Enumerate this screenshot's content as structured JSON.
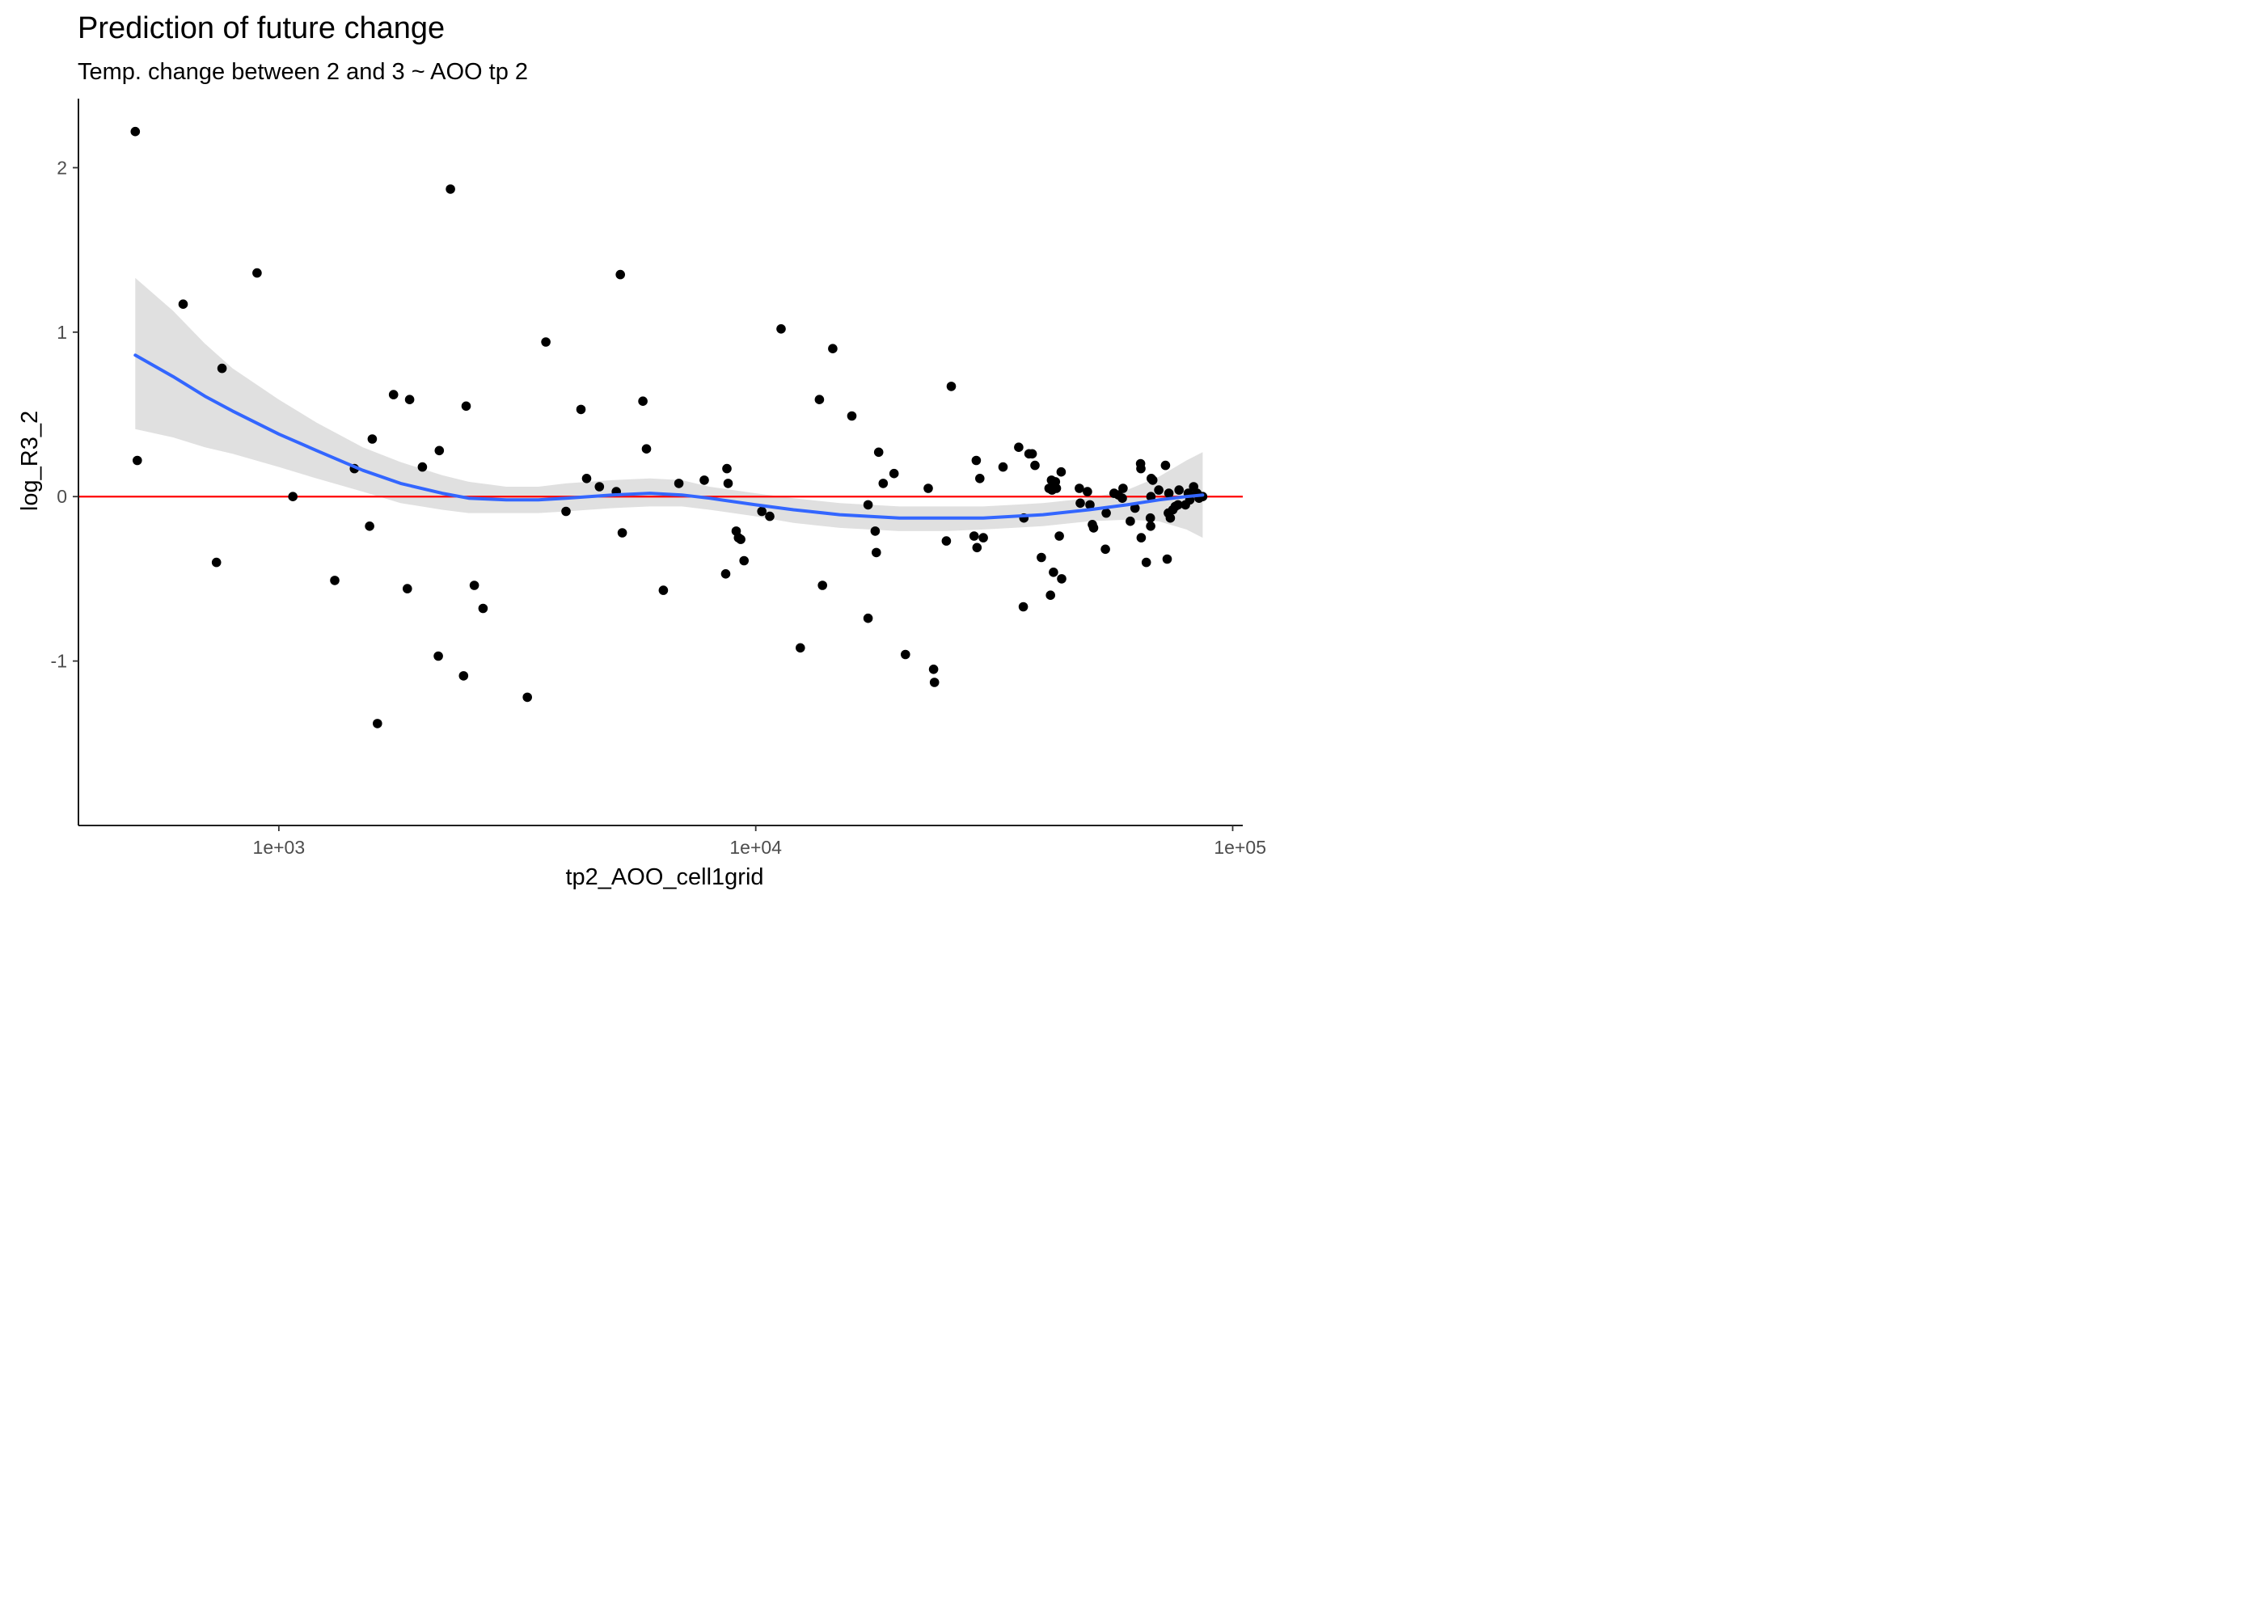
{
  "chart_data": {
    "type": "scatter",
    "title": "Prediction of future change",
    "subtitle": "Temp. change between 2 and 3 ~ AOO tp 2",
    "xlabel": "tp2_AOO_cell1grid",
    "ylabel": "log_R3_2",
    "x_scale": "log10",
    "xlim": [
      380,
      105000
    ],
    "ylim": [
      -2.0,
      2.42
    ],
    "x_ticks": [
      1000,
      10000,
      100000
    ],
    "x_tick_labels": [
      "1e+03",
      "1e+04",
      "1e+05"
    ],
    "y_ticks": [
      -1,
      0,
      1,
      2
    ],
    "y_tick_labels": [
      "-1",
      "0",
      "1",
      "2"
    ],
    "grid": false,
    "colors": {
      "points": "#000000",
      "smooth_line": "#3366FF",
      "confidence_band": "#CCCCCC",
      "reference_line": "#FF0000",
      "axis": "#000000",
      "tick_text": "#4D4D4D"
    },
    "reference_line_y": 0,
    "points": [
      {
        "x": 500,
        "y": 2.22
      },
      {
        "x": 505,
        "y": 0.22
      },
      {
        "x": 630,
        "y": 1.17
      },
      {
        "x": 740,
        "y": -0.4
      },
      {
        "x": 760,
        "y": 0.78
      },
      {
        "x": 900,
        "y": 1.36
      },
      {
        "x": 1070,
        "y": 0.0
      },
      {
        "x": 1310,
        "y": -0.51
      },
      {
        "x": 1440,
        "y": 0.17
      },
      {
        "x": 1550,
        "y": -0.18
      },
      {
        "x": 1570,
        "y": 0.35
      },
      {
        "x": 1610,
        "y": -1.38
      },
      {
        "x": 1740,
        "y": 0.62
      },
      {
        "x": 1860,
        "y": -0.56
      },
      {
        "x": 1880,
        "y": 0.59
      },
      {
        "x": 2000,
        "y": 0.18
      },
      {
        "x": 2160,
        "y": -0.97
      },
      {
        "x": 2170,
        "y": 0.28
      },
      {
        "x": 2290,
        "y": 1.87
      },
      {
        "x": 2440,
        "y": -1.09
      },
      {
        "x": 2470,
        "y": 0.55
      },
      {
        "x": 2570,
        "y": -0.54
      },
      {
        "x": 2680,
        "y": -0.68
      },
      {
        "x": 3320,
        "y": -1.22
      },
      {
        "x": 3630,
        "y": 0.94
      },
      {
        "x": 4000,
        "y": -0.09
      },
      {
        "x": 4300,
        "y": 0.53
      },
      {
        "x": 4420,
        "y": 0.11
      },
      {
        "x": 4700,
        "y": 0.06
      },
      {
        "x": 5100,
        "y": 0.03
      },
      {
        "x": 5200,
        "y": 1.35
      },
      {
        "x": 5250,
        "y": -0.22
      },
      {
        "x": 5800,
        "y": 0.58
      },
      {
        "x": 5900,
        "y": 0.29
      },
      {
        "x": 6400,
        "y": -0.57
      },
      {
        "x": 6900,
        "y": 0.08
      },
      {
        "x": 7800,
        "y": 0.1
      },
      {
        "x": 8650,
        "y": -0.47
      },
      {
        "x": 8700,
        "y": 0.17
      },
      {
        "x": 8750,
        "y": 0.08
      },
      {
        "x": 9100,
        "y": -0.21
      },
      {
        "x": 9200,
        "y": -0.25
      },
      {
        "x": 9300,
        "y": -0.26
      },
      {
        "x": 9450,
        "y": -0.39
      },
      {
        "x": 10300,
        "y": -0.09
      },
      {
        "x": 10700,
        "y": -0.12
      },
      {
        "x": 11300,
        "y": 1.02
      },
      {
        "x": 12400,
        "y": -0.92
      },
      {
        "x": 13600,
        "y": 0.59
      },
      {
        "x": 13800,
        "y": -0.54
      },
      {
        "x": 14500,
        "y": 0.9
      },
      {
        "x": 15900,
        "y": 0.49
      },
      {
        "x": 17200,
        "y": -0.05
      },
      {
        "x": 17200,
        "y": -0.74
      },
      {
        "x": 17800,
        "y": -0.21
      },
      {
        "x": 17900,
        "y": -0.34
      },
      {
        "x": 18100,
        "y": 0.27
      },
      {
        "x": 18500,
        "y": 0.08
      },
      {
        "x": 19500,
        "y": 0.14
      },
      {
        "x": 20600,
        "y": -0.96
      },
      {
        "x": 23000,
        "y": 0.05
      },
      {
        "x": 23600,
        "y": -1.05
      },
      {
        "x": 23700,
        "y": -1.13
      },
      {
        "x": 25100,
        "y": -0.27
      },
      {
        "x": 25700,
        "y": 0.67
      },
      {
        "x": 28700,
        "y": -0.24
      },
      {
        "x": 29000,
        "y": 0.22
      },
      {
        "x": 29100,
        "y": -0.31
      },
      {
        "x": 29500,
        "y": 0.11
      },
      {
        "x": 30000,
        "y": -0.25
      },
      {
        "x": 33000,
        "y": 0.18
      },
      {
        "x": 35600,
        "y": 0.3
      },
      {
        "x": 36400,
        "y": -0.67
      },
      {
        "x": 36500,
        "y": -0.13
      },
      {
        "x": 37400,
        "y": 0.26
      },
      {
        "x": 38000,
        "y": 0.26
      },
      {
        "x": 38500,
        "y": 0.19
      },
      {
        "x": 39700,
        "y": -0.37
      },
      {
        "x": 41200,
        "y": 0.05
      },
      {
        "x": 41500,
        "y": -0.6
      },
      {
        "x": 41700,
        "y": 0.1
      },
      {
        "x": 41800,
        "y": 0.04
      },
      {
        "x": 42100,
        "y": -0.46
      },
      {
        "x": 42300,
        "y": 0.08
      },
      {
        "x": 42500,
        "y": 0.09
      },
      {
        "x": 42700,
        "y": 0.05
      },
      {
        "x": 43300,
        "y": -0.24
      },
      {
        "x": 43700,
        "y": 0.15
      },
      {
        "x": 43800,
        "y": -0.5
      },
      {
        "x": 47700,
        "y": 0.05
      },
      {
        "x": 47900,
        "y": -0.04
      },
      {
        "x": 49600,
        "y": 0.03
      },
      {
        "x": 50200,
        "y": -0.05
      },
      {
        "x": 50800,
        "y": -0.17
      },
      {
        "x": 51100,
        "y": -0.19
      },
      {
        "x": 54100,
        "y": -0.32
      },
      {
        "x": 54300,
        "y": -0.1
      },
      {
        "x": 56400,
        "y": 0.02
      },
      {
        "x": 57600,
        "y": 0.01
      },
      {
        "x": 58700,
        "y": -0.01
      },
      {
        "x": 58900,
        "y": 0.05
      },
      {
        "x": 61000,
        "y": -0.15
      },
      {
        "x": 62400,
        "y": -0.07
      },
      {
        "x": 64100,
        "y": 0.2
      },
      {
        "x": 64200,
        "y": 0.17
      },
      {
        "x": 64300,
        "y": -0.25
      },
      {
        "x": 65900,
        "y": -0.4
      },
      {
        "x": 67200,
        "y": -0.13
      },
      {
        "x": 67300,
        "y": -0.18
      },
      {
        "x": 67400,
        "y": 0.0
      },
      {
        "x": 67500,
        "y": 0.11
      },
      {
        "x": 68000,
        "y": 0.1
      },
      {
        "x": 70000,
        "y": 0.04
      },
      {
        "x": 72300,
        "y": 0.19
      },
      {
        "x": 72900,
        "y": -0.38
      },
      {
        "x": 73300,
        "y": -0.1
      },
      {
        "x": 73500,
        "y": 0.02
      },
      {
        "x": 74000,
        "y": -0.13
      },
      {
        "x": 74900,
        "y": -0.08
      },
      {
        "x": 75800,
        "y": -0.06
      },
      {
        "x": 76800,
        "y": -0.05
      },
      {
        "x": 77200,
        "y": 0.04
      },
      {
        "x": 79600,
        "y": -0.05
      },
      {
        "x": 80700,
        "y": 0.02
      },
      {
        "x": 81300,
        "y": -0.02
      },
      {
        "x": 82800,
        "y": 0.06
      },
      {
        "x": 84200,
        "y": 0.02
      },
      {
        "x": 85000,
        "y": -0.01
      },
      {
        "x": 86500,
        "y": 0.0
      }
    ],
    "smooth": {
      "method": "loess",
      "curve": [
        {
          "x": 500,
          "y": 0.86,
          "ymin": 0.41,
          "ymax": 1.33
        },
        {
          "x": 600,
          "y": 0.73,
          "ymin": 0.36,
          "ymax": 1.13
        },
        {
          "x": 700,
          "y": 0.61,
          "ymin": 0.3,
          "ymax": 0.93
        },
        {
          "x": 800,
          "y": 0.52,
          "ymin": 0.26,
          "ymax": 0.78
        },
        {
          "x": 1000,
          "y": 0.38,
          "ymin": 0.18,
          "ymax": 0.59
        },
        {
          "x": 1200,
          "y": 0.28,
          "ymin": 0.11,
          "ymax": 0.45
        },
        {
          "x": 1500,
          "y": 0.16,
          "ymin": 0.03,
          "ymax": 0.3
        },
        {
          "x": 1800,
          "y": 0.08,
          "ymin": -0.04,
          "ymax": 0.21
        },
        {
          "x": 2200,
          "y": 0.02,
          "ymin": -0.08,
          "ymax": 0.13
        },
        {
          "x": 2500,
          "y": -0.01,
          "ymin": -0.1,
          "ymax": 0.09
        },
        {
          "x": 3000,
          "y": -0.02,
          "ymin": -0.1,
          "ymax": 0.06
        },
        {
          "x": 3500,
          "y": -0.02,
          "ymin": -0.1,
          "ymax": 0.06
        },
        {
          "x": 4000,
          "y": -0.01,
          "ymin": -0.09,
          "ymax": 0.08
        },
        {
          "x": 5000,
          "y": 0.01,
          "ymin": -0.07,
          "ymax": 0.1
        },
        {
          "x": 6000,
          "y": 0.02,
          "ymin": -0.06,
          "ymax": 0.11
        },
        {
          "x": 7000,
          "y": 0.01,
          "ymin": -0.06,
          "ymax": 0.1
        },
        {
          "x": 8000,
          "y": -0.01,
          "ymin": -0.08,
          "ymax": 0.06
        },
        {
          "x": 10000,
          "y": -0.05,
          "ymin": -0.12,
          "ymax": 0.02
        },
        {
          "x": 12000,
          "y": -0.08,
          "ymin": -0.16,
          "ymax": -0.01
        },
        {
          "x": 15000,
          "y": -0.11,
          "ymin": -0.19,
          "ymax": -0.04
        },
        {
          "x": 20000,
          "y": -0.13,
          "ymin": -0.21,
          "ymax": -0.06
        },
        {
          "x": 25000,
          "y": -0.13,
          "ymin": -0.21,
          "ymax": -0.06
        },
        {
          "x": 30000,
          "y": -0.13,
          "ymin": -0.2,
          "ymax": -0.06
        },
        {
          "x": 40000,
          "y": -0.11,
          "ymin": -0.18,
          "ymax": -0.04
        },
        {
          "x": 50000,
          "y": -0.08,
          "ymin": -0.15,
          "ymax": -0.01
        },
        {
          "x": 60000,
          "y": -0.05,
          "ymin": -0.14,
          "ymax": 0.04
        },
        {
          "x": 70000,
          "y": -0.02,
          "ymin": -0.15,
          "ymax": 0.12
        },
        {
          "x": 80000,
          "y": 0.0,
          "ymin": -0.2,
          "ymax": 0.22
        },
        {
          "x": 86500,
          "y": 0.01,
          "ymin": -0.25,
          "ymax": 0.27
        }
      ]
    }
  }
}
